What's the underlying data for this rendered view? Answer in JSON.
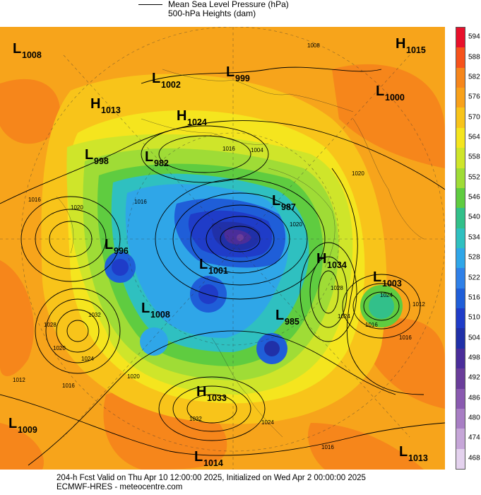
{
  "legend": {
    "line1": "Mean Sea Level Pressure (hPa)",
    "line2": "500-hPa Heights (dam)"
  },
  "colorbar": {
    "ticks": [
      "594",
      "588",
      "582",
      "576",
      "570",
      "564",
      "558",
      "552",
      "546",
      "540",
      "534",
      "528",
      "522",
      "516",
      "510",
      "504",
      "498",
      "492",
      "486",
      "480",
      "474",
      "468"
    ],
    "colors": [
      "#e8102b",
      "#f6521b",
      "#f6861b",
      "#f8a11a",
      "#f8c41a",
      "#f5e51e",
      "#cfe52a",
      "#9fdc36",
      "#5fcc40",
      "#32c08a",
      "#2fc0c0",
      "#2fa6e8",
      "#2f80e8",
      "#1f5ed8",
      "#1f3cc8",
      "#2030a8",
      "#4a2d9a",
      "#6a3d9a",
      "#8a5ab0",
      "#a87ec4",
      "#c6a6d8",
      "#e4d2ee"
    ]
  },
  "pressure_centers": [
    {
      "type": "L",
      "value": "1008"
    },
    {
      "type": "L",
      "value": "1002"
    },
    {
      "type": "L",
      "value": "999"
    },
    {
      "type": "H",
      "value": "1015"
    },
    {
      "type": "H",
      "value": "1013"
    },
    {
      "type": "H",
      "value": "1024"
    },
    {
      "type": "L",
      "value": "1000"
    },
    {
      "type": "L",
      "value": "998"
    },
    {
      "type": "L",
      "value": "982"
    },
    {
      "type": "L",
      "value": "987"
    },
    {
      "type": "L",
      "value": "996"
    },
    {
      "type": "L",
      "value": "1001"
    },
    {
      "type": "H",
      "value": "1034"
    },
    {
      "type": "L",
      "value": "1003"
    },
    {
      "type": "L",
      "value": "1008"
    },
    {
      "type": "L",
      "value": "985"
    },
    {
      "type": "H",
      "value": "1033"
    },
    {
      "type": "L",
      "value": "1009"
    },
    {
      "type": "L",
      "value": "1014"
    },
    {
      "type": "L",
      "value": "1013"
    }
  ],
  "isobar_labels": [
    "1008",
    "1016",
    "1004",
    "1020",
    "1016",
    "1020",
    "1016",
    "1032",
    "1028",
    "1020",
    "1024",
    "1016",
    "1028",
    "1024",
    "1020",
    "1012",
    "1024",
    "1016",
    "1032",
    "1020",
    "1016",
    "1012",
    "1024",
    "1016"
  ],
  "footer": {
    "line1": "204-h Fcst Valid on Thu Apr 10 12:00:00 2025, Initialized on Wed Apr  2 00:00:00 2025",
    "line2": "ECMWF-HRES  - meteocentre.com"
  }
}
